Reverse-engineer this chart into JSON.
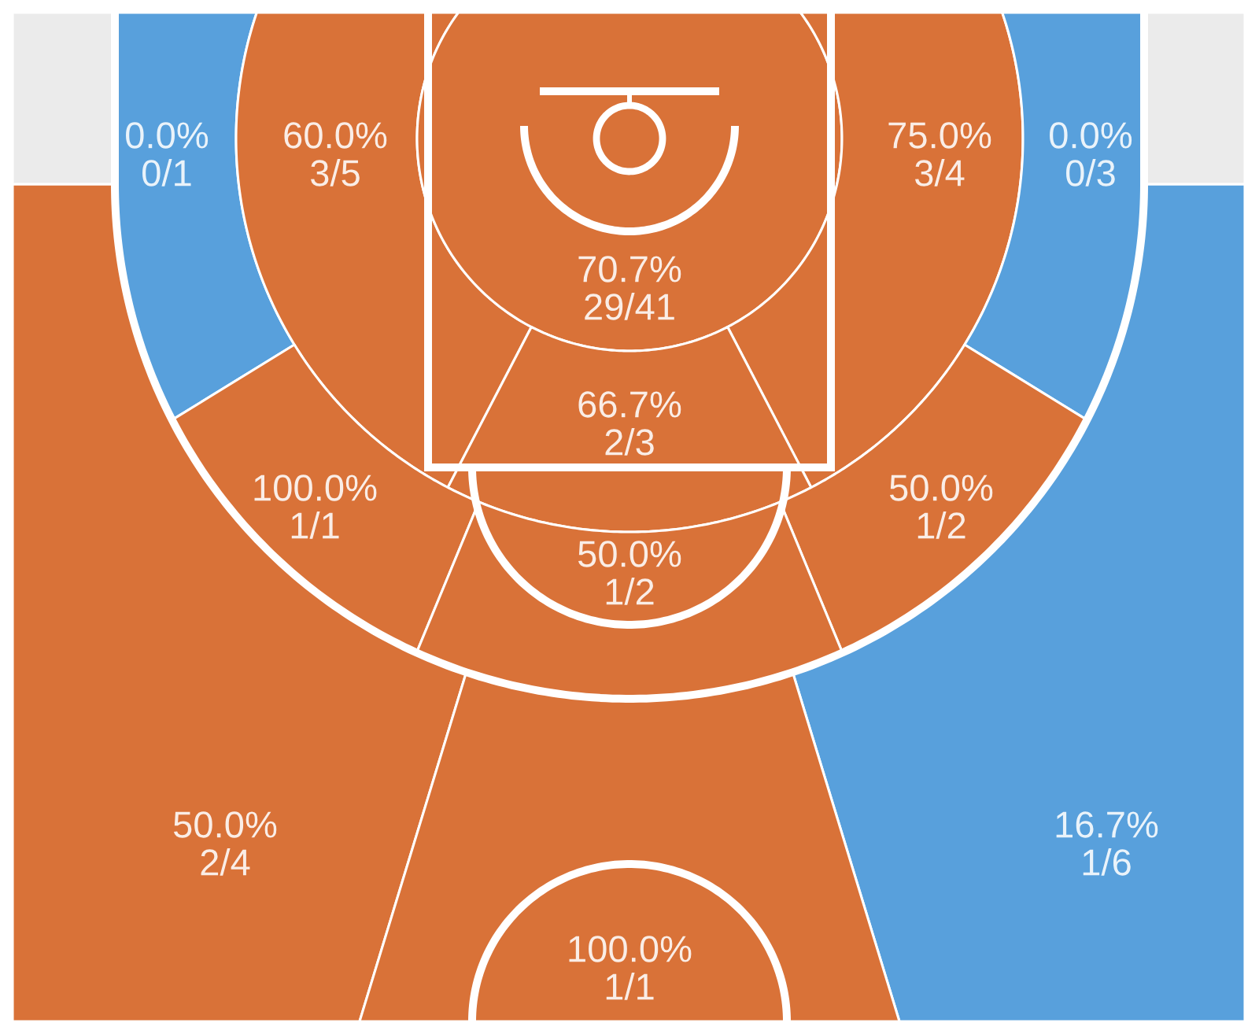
{
  "chart_data": {
    "type": "other",
    "categories": [
      "0/1",
      "3/5",
      "29/41",
      "3/4",
      "0/3",
      "2/3",
      "1/1",
      "1/2",
      "1/2",
      "2/4",
      "1/6",
      "1/1",
      null,
      null
    ],
    "values": [
      0.0,
      60.0,
      70.7,
      75.0,
      0.0,
      66.7,
      100.0,
      50.0,
      50.0,
      50.0,
      16.7,
      100.0,
      null,
      null
    ],
    "value_labels": [
      "0.0%",
      "60.0%",
      "70.7%",
      "75.0%",
      "0.0%",
      "66.7%",
      "100.0%",
      "50.0%",
      "50.0%",
      "50.0%",
      "16.7%",
      "100.0%",
      null,
      null
    ],
    "colors": [
      "#58a0dc",
      "#d97238",
      "#d97238",
      "#d97238",
      "#58a0dc",
      "#d97238",
      "#d97238",
      "#d97238",
      "#d97238",
      "#d97238",
      "#58a0dc",
      "#d97238",
      "#ebebeb",
      "#ebebeb"
    ]
  }
}
